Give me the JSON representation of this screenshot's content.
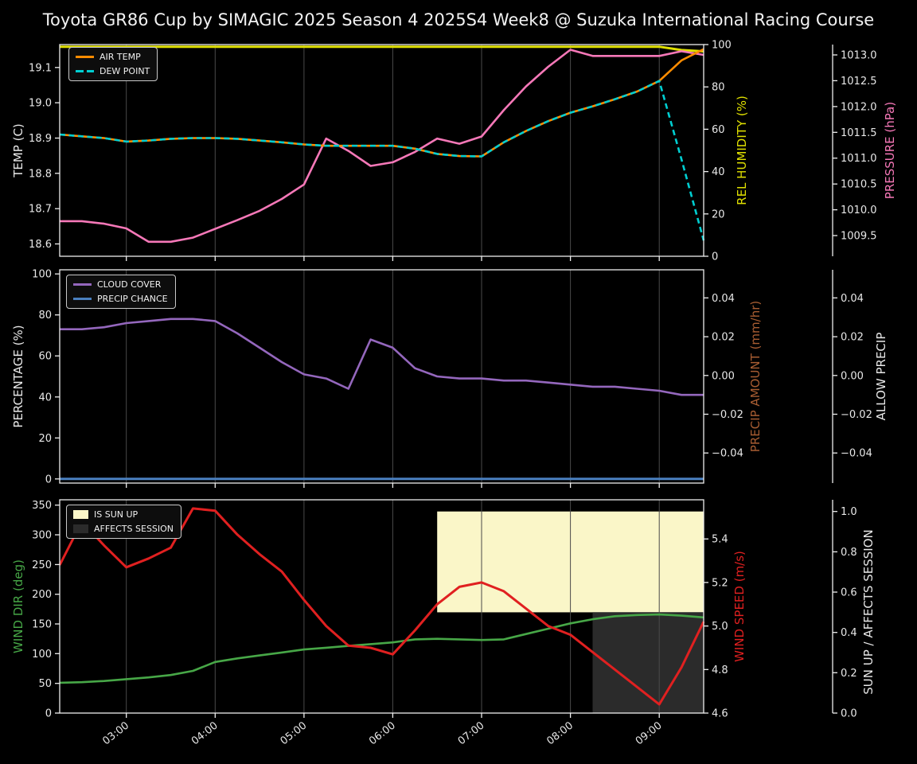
{
  "title": "Toyota GR86 Cup by SIMAGIC 2025 Season 4 2025S4 Week8 @ Suzuka International Racing Course",
  "colors": {
    "background": "#000000",
    "text": "#e8e8e8",
    "spine": "#eeeeee",
    "grid": "#4a4a4a",
    "air_temp": "#ff8c00",
    "dew_point": "#00ced1",
    "humidity": "#e0e000",
    "pressure": "#f678b8",
    "cloud_cover": "#9467bd",
    "precip_chance": "#4a80c0",
    "precip_amount": "#a85d32",
    "allow_precip": "#e8e8e8",
    "wind_dir": "#47a747",
    "wind_speed": "#e02020",
    "sun_fill": "#faf6c8",
    "affects_fill": "#2b2b2b"
  },
  "x_axis": {
    "range_hours": [
      2.25,
      9.5
    ],
    "tick_hours": [
      3,
      4,
      5,
      6,
      7,
      8,
      9
    ],
    "tick_labels": [
      "03:00",
      "04:00",
      "05:00",
      "06:00",
      "07:00",
      "08:00",
      "09:00"
    ]
  },
  "chart_data": [
    {
      "type": "line",
      "x_hours": [
        2.25,
        2.5,
        2.75,
        3.0,
        3.25,
        3.5,
        3.75,
        4.0,
        4.25,
        4.5,
        4.75,
        5.0,
        5.25,
        5.5,
        5.75,
        6.0,
        6.25,
        6.5,
        6.75,
        7.0,
        7.25,
        7.5,
        7.75,
        8.0,
        8.25,
        8.5,
        8.75,
        9.0,
        9.25,
        9.5
      ],
      "axes": {
        "left": {
          "label": "TEMP (C)",
          "color_key": "text",
          "range": [
            18.565,
            19.165
          ],
          "ticks": [
            18.6,
            18.7,
            18.8,
            18.9,
            19.0,
            19.1
          ],
          "tick_labels": [
            "18.6",
            "18.7",
            "18.8",
            "18.9",
            "19.0",
            "19.1"
          ]
        },
        "right1": {
          "label": "REL HUMIDITY (%)",
          "color_key": "humidity",
          "range": [
            0,
            100
          ],
          "ticks": [
            0,
            20,
            40,
            60,
            80,
            100
          ],
          "tick_labels": [
            "0",
            "20",
            "40",
            "60",
            "80",
            "100"
          ]
        },
        "right2": {
          "label": "PRESSURE (hPa)",
          "color_key": "pressure",
          "range": [
            1009.1,
            1013.2
          ],
          "ticks": [
            1009.5,
            1010.0,
            1010.5,
            1011.0,
            1011.5,
            1012.0,
            1012.5,
            1013.0
          ],
          "tick_labels": [
            "1009.5",
            "1010.0",
            "1010.5",
            "1011.0",
            "1011.5",
            "1012.0",
            "1012.5",
            "1013.0"
          ]
        }
      },
      "series": [
        {
          "name": "REL HUMIDITY",
          "axis": "right1",
          "color_key": "humidity",
          "width": 3,
          "values": [
            99,
            99,
            99,
            99,
            99,
            99,
            99,
            99,
            99,
            99,
            99,
            99,
            99,
            99,
            99,
            99,
            99,
            99,
            99,
            99,
            99,
            99,
            99,
            99,
            99,
            99,
            99,
            99,
            97.4,
            96.8
          ]
        },
        {
          "name": "PRESSURE",
          "axis": "right2",
          "color_key": "pressure",
          "width": 2.6,
          "values": [
            1009.78,
            1009.78,
            1009.73,
            1009.64,
            1009.38,
            1009.38,
            1009.46,
            1009.63,
            1009.8,
            1009.98,
            1010.21,
            1010.49,
            1011.38,
            1011.14,
            1010.85,
            1010.92,
            1011.12,
            1011.38,
            1011.28,
            1011.42,
            1011.93,
            1012.39,
            1012.77,
            1013.1,
            1012.98,
            1012.98,
            1012.98,
            1012.98,
            1013.07,
            1013.0
          ]
        },
        {
          "name": "AIR TEMP",
          "axis": "left",
          "color_key": "air_temp",
          "width": 2.6,
          "values": [
            18.91,
            18.905,
            18.9,
            18.89,
            18.893,
            18.898,
            18.9,
            18.9,
            18.898,
            18.893,
            18.888,
            18.882,
            18.878,
            18.878,
            18.878,
            18.878,
            18.87,
            18.855,
            18.849,
            18.848,
            18.888,
            18.92,
            18.948,
            18.972,
            18.99,
            19.01,
            19.032,
            19.062,
            19.12,
            19.152
          ]
        },
        {
          "name": "DEW POINT",
          "axis": "left",
          "color_key": "dew_point",
          "width": 2.6,
          "dash": [
            7,
            4.5
          ],
          "values": [
            18.91,
            18.905,
            18.9,
            18.89,
            18.893,
            18.898,
            18.9,
            18.9,
            18.898,
            18.893,
            18.888,
            18.882,
            18.878,
            18.878,
            18.878,
            18.878,
            18.87,
            18.855,
            18.849,
            18.848,
            18.888,
            18.92,
            18.948,
            18.972,
            18.99,
            19.01,
            19.032,
            19.062,
            18.84,
            18.61
          ]
        }
      ],
      "legend": [
        {
          "label": "AIR TEMP",
          "swatch": "line",
          "color_key": "air_temp"
        },
        {
          "label": "DEW POINT",
          "swatch": "dash",
          "color_key": "dew_point"
        }
      ]
    },
    {
      "type": "line",
      "x_hours": [
        2.25,
        2.5,
        2.75,
        3.0,
        3.25,
        3.5,
        3.75,
        4.0,
        4.25,
        4.5,
        4.75,
        5.0,
        5.25,
        5.5,
        5.75,
        6.0,
        6.25,
        6.5,
        6.75,
        7.0,
        7.25,
        7.5,
        7.75,
        8.0,
        8.25,
        8.5,
        8.75,
        9.0,
        9.25,
        9.5
      ],
      "axes": {
        "left": {
          "label": "PERCENTAGE (%)",
          "color_key": "text",
          "range": [
            -2,
            102
          ],
          "ticks": [
            0,
            20,
            40,
            60,
            80,
            100
          ],
          "tick_labels": [
            "0",
            "20",
            "40",
            "60",
            "80",
            "100"
          ]
        },
        "right1": {
          "label": "PRECIP AMOUNT (mm/hr)",
          "color_key": "precip_amount",
          "range": [
            -0.0555,
            0.0545
          ],
          "ticks": [
            0.04,
            0.02,
            0.0,
            -0.02,
            -0.04
          ],
          "tick_labels": [
            "0.04",
            "0.02",
            "0.00",
            "−0.02",
            "−0.04"
          ]
        },
        "right2": {
          "label": "ALLOW PRECIP",
          "color_key": "allow_precip",
          "range": [
            -0.0555,
            0.0545
          ],
          "ticks": [
            0.04,
            0.02,
            0.0,
            -0.02,
            -0.04
          ],
          "tick_labels": [
            "0.04",
            "0.02",
            "0.00",
            "−0.02",
            "−0.04"
          ]
        }
      },
      "series": [
        {
          "name": "CLOUD COVER",
          "axis": "left",
          "color_key": "cloud_cover",
          "width": 2.6,
          "values": [
            73,
            73,
            74,
            76,
            77,
            78,
            78,
            77,
            71,
            64,
            57,
            51,
            49,
            44,
            68,
            64,
            54,
            50,
            49,
            49,
            48,
            48,
            47,
            46,
            45,
            45,
            44,
            43,
            41,
            41
          ]
        },
        {
          "name": "PRECIP CHANCE",
          "axis": "left",
          "color_key": "precip_chance",
          "width": 3,
          "values": [
            0,
            0,
            0,
            0,
            0,
            0,
            0,
            0,
            0,
            0,
            0,
            0,
            0,
            0,
            0,
            0,
            0,
            0,
            0,
            0,
            0,
            0,
            0,
            0,
            0,
            0,
            0,
            0,
            0,
            0
          ]
        }
      ],
      "legend": [
        {
          "label": "CLOUD COVER",
          "swatch": "line",
          "color_key": "cloud_cover"
        },
        {
          "label": "PRECIP CHANCE",
          "swatch": "line",
          "color_key": "precip_chance"
        }
      ]
    },
    {
      "type": "line",
      "x_hours": [
        2.25,
        2.5,
        2.75,
        3.0,
        3.25,
        3.5,
        3.75,
        4.0,
        4.25,
        4.5,
        4.75,
        5.0,
        5.25,
        5.5,
        5.75,
        6.0,
        6.25,
        6.5,
        6.75,
        7.0,
        7.25,
        7.5,
        7.75,
        8.0,
        8.25,
        8.5,
        8.75,
        9.0,
        9.25,
        9.5
      ],
      "axes": {
        "left": {
          "label": "WIND DIR (deg)",
          "color_key": "wind_dir",
          "range": [
            0,
            359
          ],
          "ticks": [
            0,
            50,
            100,
            150,
            200,
            250,
            300,
            350
          ],
          "tick_labels": [
            "0",
            "50",
            "100",
            "150",
            "200",
            "250",
            "300",
            "350"
          ]
        },
        "right1": {
          "label": "WIND SPEED (m/s)",
          "color_key": "wind_speed",
          "range": [
            4.6,
            5.58
          ],
          "ticks": [
            4.6,
            4.8,
            5.0,
            5.2,
            5.4
          ],
          "tick_labels": [
            "4.6",
            "4.8",
            "5.0",
            "5.2",
            "5.4"
          ]
        },
        "right2": {
          "label": "SUN UP / AFFECTS SESSION",
          "color_key": "text",
          "range": [
            0,
            1.058
          ],
          "ticks": [
            0.0,
            0.2,
            0.4,
            0.6,
            0.8,
            1.0
          ],
          "tick_labels": [
            "0.0",
            "0.2",
            "0.4",
            "0.6",
            "0.8",
            "1.0"
          ]
        }
      },
      "fills": [
        {
          "name": "IS SUN UP",
          "axis": "right2",
          "x": [
            6.5,
            9.5
          ],
          "y": [
            0.5,
            1.0
          ],
          "color_key": "sun_fill"
        },
        {
          "name": "AFFECTS SESSION",
          "axis": "right2",
          "x": [
            8.25,
            9.5
          ],
          "y": [
            0.0,
            0.5
          ],
          "color_key": "affects_fill"
        }
      ],
      "series": [
        {
          "name": "WIND DIR",
          "axis": "left",
          "color_key": "wind_dir",
          "width": 2.6,
          "values": [
            51,
            52,
            54,
            57,
            60,
            64,
            71,
            86,
            92,
            97,
            102,
            107,
            110,
            113,
            116,
            119,
            124,
            125,
            124,
            123,
            124,
            133,
            142,
            151,
            158,
            163,
            165,
            166,
            164,
            161
          ]
        },
        {
          "name": "WIND SPEED",
          "axis": "right1",
          "color_key": "wind_speed",
          "width": 3,
          "values": [
            5.28,
            5.48,
            5.37,
            5.27,
            5.31,
            5.36,
            5.54,
            5.53,
            5.42,
            5.33,
            5.25,
            5.12,
            5.0,
            4.91,
            4.9,
            4.87,
            4.98,
            5.1,
            5.18,
            5.2,
            5.16,
            5.08,
            5.0,
            4.96,
            4.88,
            4.8,
            4.72,
            4.64,
            4.81,
            5.02
          ]
        }
      ],
      "legend": [
        {
          "label": "IS SUN UP",
          "swatch": "patch",
          "color_key": "sun_fill"
        },
        {
          "label": "AFFECTS SESSION",
          "swatch": "patch",
          "color_key": "affects_fill"
        }
      ]
    }
  ]
}
